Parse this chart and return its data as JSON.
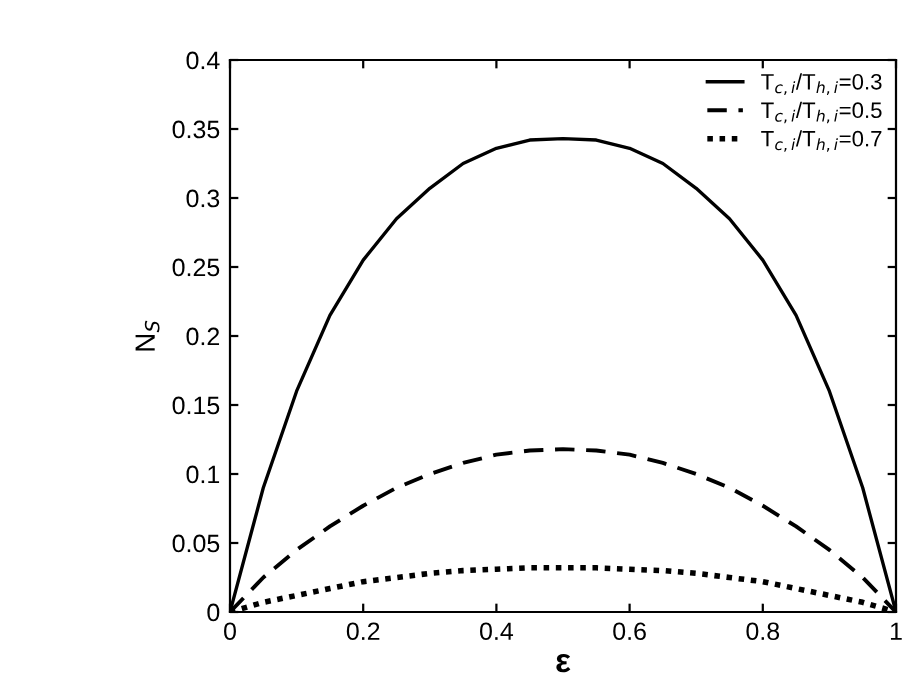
{
  "chart_data": {
    "type": "line",
    "xlabel": "ε",
    "ylabel": "N$_{S}$",
    "x": [
      0,
      0.05,
      0.1,
      0.15,
      0.2,
      0.25,
      0.3,
      0.35,
      0.4,
      0.45,
      0.5,
      0.55,
      0.6,
      0.65,
      0.7,
      0.75,
      0.8,
      0.85,
      0.9,
      0.95,
      1
    ],
    "series": [
      {
        "name": "T$_{c,i}$/T$_{h,i}$=0.3",
        "color": "#000000",
        "line_style": "solid",
        "values": [
          0,
          0.09,
          0.16,
          0.215,
          0.255,
          0.285,
          0.307,
          0.325,
          0.336,
          0.342,
          0.343,
          0.342,
          0.336,
          0.325,
          0.307,
          0.285,
          0.255,
          0.215,
          0.16,
          0.09,
          0
        ]
      },
      {
        "name": "T$_{c,i}$/T$_{h,i}$=0.5",
        "color": "#000000",
        "line_style": "dashed",
        "values": [
          0,
          0.025,
          0.045,
          0.062,
          0.077,
          0.09,
          0.1,
          0.108,
          0.114,
          0.117,
          0.118,
          0.117,
          0.114,
          0.108,
          0.1,
          0.09,
          0.077,
          0.062,
          0.045,
          0.025,
          0
        ]
      },
      {
        "name": "T$_{c,i}$/T$_{h,i}$=0.7",
        "color": "#000000",
        "line_style": "dotted",
        "values": [
          0,
          0.007,
          0.012,
          0.017,
          0.022,
          0.025,
          0.028,
          0.03,
          0.031,
          0.032,
          0.032,
          0.032,
          0.031,
          0.03,
          0.028,
          0.025,
          0.022,
          0.017,
          0.012,
          0.007,
          0
        ]
      }
    ],
    "xlim": [
      0,
      1
    ],
    "xticks": [
      0,
      0.2,
      0.4,
      0.6,
      0.8,
      1
    ],
    "ylim": [
      0,
      0.4
    ],
    "yticks": [
      0,
      0.05,
      0.1,
      0.15,
      0.2,
      0.25,
      0.3,
      0.35,
      0.4
    ],
    "grid": false,
    "legend": "top right"
  }
}
